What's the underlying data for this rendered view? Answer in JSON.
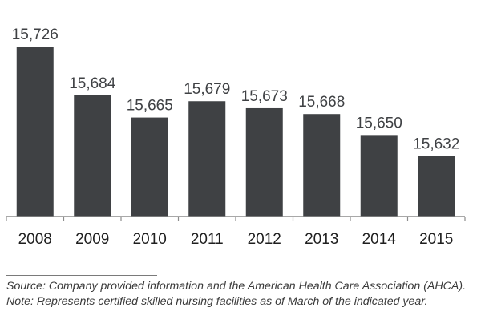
{
  "chart_data": {
    "type": "bar",
    "title": "",
    "xlabel": "",
    "ylabel": "",
    "categories": [
      "2008",
      "2009",
      "2010",
      "2011",
      "2012",
      "2013",
      "2014",
      "2015"
    ],
    "values": [
      15726,
      15684,
      15665,
      15679,
      15673,
      15668,
      15650,
      15632
    ],
    "value_labels": [
      "15,726",
      "15,684",
      "15,665",
      "15,679",
      "15,673",
      "15,668",
      "15,650",
      "15,632"
    ],
    "ylim": [
      15580,
      15726
    ],
    "grid": false,
    "legend": "none",
    "bar_color": "#3f4144"
  },
  "footnote": {
    "text": "Source: Company provided information and the American Health Care Association (AHCA). Note: Represents certified skilled nursing facilities as of March of the indicated year."
  }
}
